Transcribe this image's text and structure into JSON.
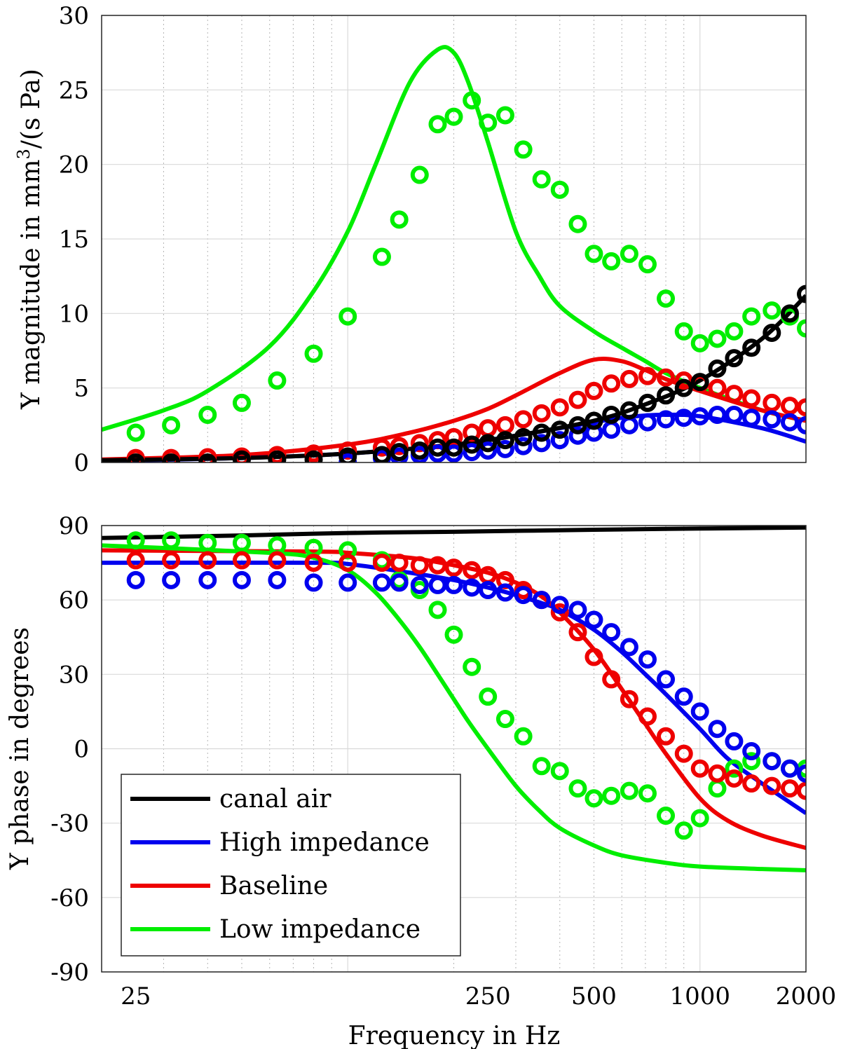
{
  "chart_data": [
    {
      "type": "line",
      "panel": "top",
      "ylabel": "Y magnitude in mm³/(s Pa)",
      "ylabel_parts": {
        "pre": "Y magnitude in mm",
        "sup": "3",
        "post": "/(s Pa)"
      },
      "xscale": "log",
      "xlim": [
        20,
        2000
      ],
      "ylim": [
        0,
        30
      ],
      "yticks": [
        0,
        5,
        10,
        15,
        20,
        25,
        30
      ],
      "ytick_labels": [
        "0",
        "5",
        "10",
        "15",
        "20",
        "25",
        "30"
      ],
      "grid": true,
      "series": [
        {
          "name": "Low impedance",
          "color": "#00ee00",
          "kind": "model",
          "x": [
            20,
            30,
            40,
            60,
            80,
            100,
            120,
            150,
            180,
            200,
            220,
            250,
            300,
            350,
            400,
            500,
            600,
            700,
            800,
            1000,
            1500,
            2000
          ],
          "y": [
            2.2,
            3.5,
            4.8,
            7.8,
            11.5,
            15.5,
            20.0,
            25.5,
            27.7,
            27.5,
            25.5,
            21.5,
            15.5,
            12.5,
            10.5,
            8.8,
            7.7,
            6.8,
            6.0,
            5.0,
            3.5,
            2.8
          ]
        },
        {
          "name": "Baseline",
          "color": "#ee0000",
          "kind": "model",
          "x": [
            20,
            50,
            100,
            150,
            200,
            250,
            300,
            400,
            500,
            600,
            700,
            800,
            1000,
            1500,
            2000
          ],
          "y": [
            0.2,
            0.5,
            1.2,
            2.0,
            2.8,
            3.6,
            4.5,
            6.0,
            6.9,
            6.8,
            6.2,
            5.6,
            4.8,
            3.5,
            2.8
          ]
        },
        {
          "name": "High impedance",
          "color": "#0000ee",
          "kind": "model",
          "x": [
            20,
            50,
            100,
            200,
            300,
            400,
            500,
            600,
            700,
            800,
            1000,
            1500,
            2000
          ],
          "y": [
            0.1,
            0.3,
            0.6,
            1.2,
            1.8,
            2.3,
            2.7,
            3.0,
            3.15,
            3.2,
            3.1,
            2.3,
            1.4
          ]
        },
        {
          "name": "canal air",
          "color": "#000000",
          "kind": "model",
          "x": [
            20,
            50,
            100,
            200,
            300,
            500,
            700,
            1000,
            1500,
            2000
          ],
          "y": [
            0.15,
            0.3,
            0.6,
            1.2,
            1.8,
            2.8,
            3.9,
            5.5,
            8.3,
            11.2
          ]
        },
        {
          "name": "Low impedance (measured)",
          "color": "#00ee00",
          "kind": "measured",
          "x": [
            25,
            31.5,
            40,
            50,
            63,
            80,
            100,
            125,
            140,
            160,
            180,
            200,
            225,
            250,
            280,
            315,
            355,
            400,
            450,
            500,
            560,
            630,
            710,
            800,
            900,
            1000,
            1120,
            1250,
            1400,
            1600,
            1800,
            2000
          ],
          "y": [
            2.0,
            2.5,
            3.2,
            4.0,
            5.5,
            7.3,
            9.8,
            13.8,
            16.3,
            19.3,
            22.7,
            23.2,
            24.3,
            22.8,
            23.3,
            21.0,
            19.0,
            18.3,
            16.0,
            14.0,
            13.5,
            14.0,
            13.3,
            11.0,
            8.8,
            8.0,
            8.3,
            8.8,
            9.8,
            10.2,
            9.8,
            9.0
          ]
        },
        {
          "name": "Baseline (measured)",
          "color": "#ee0000",
          "kind": "measured",
          "x": [
            25,
            31.5,
            40,
            50,
            63,
            80,
            100,
            125,
            140,
            160,
            180,
            200,
            225,
            250,
            280,
            315,
            355,
            400,
            450,
            500,
            560,
            630,
            710,
            800,
            900,
            1000,
            1120,
            1250,
            1400,
            1600,
            1800,
            2000
          ],
          "y": [
            0.3,
            0.3,
            0.35,
            0.4,
            0.5,
            0.6,
            0.8,
            1.0,
            1.1,
            1.3,
            1.5,
            1.7,
            2.0,
            2.3,
            2.5,
            2.9,
            3.3,
            3.7,
            4.2,
            4.8,
            5.3,
            5.6,
            5.8,
            5.7,
            5.5,
            5.3,
            5.0,
            4.6,
            4.3,
            4.0,
            3.8,
            3.7
          ]
        },
        {
          "name": "High impedance (measured)",
          "color": "#0000ee",
          "kind": "measured",
          "x": [
            100,
            125,
            140,
            160,
            180,
            200,
            225,
            250,
            280,
            315,
            355,
            400,
            450,
            500,
            560,
            630,
            710,
            800,
            900,
            1000,
            1120,
            1250,
            1400,
            1600,
            1800,
            2000
          ],
          "y": [
            0.0,
            0.3,
            0.4,
            0.5,
            0.6,
            0.6,
            0.7,
            0.8,
            0.9,
            1.1,
            1.3,
            1.5,
            1.8,
            2.0,
            2.2,
            2.5,
            2.7,
            2.9,
            3.0,
            3.1,
            3.2,
            3.2,
            3.0,
            2.9,
            2.7,
            2.5
          ]
        },
        {
          "name": "canal air (measured)",
          "color": "#000000",
          "kind": "measured",
          "x": [
            25,
            31.5,
            40,
            50,
            63,
            80,
            100,
            125,
            140,
            160,
            180,
            200,
            225,
            250,
            280,
            315,
            355,
            400,
            450,
            500,
            560,
            630,
            710,
            800,
            900,
            1000,
            1120,
            1250,
            1400,
            1600,
            1800,
            2000
          ],
          "y": [
            0.0,
            0.0,
            0.0,
            0.2,
            0.2,
            0.2,
            0.4,
            0.5,
            0.7,
            0.8,
            1.0,
            1.0,
            1.2,
            1.3,
            1.5,
            1.7,
            2.0,
            2.2,
            2.5,
            2.8,
            3.2,
            3.5,
            4.0,
            4.5,
            5.0,
            5.4,
            6.3,
            7.0,
            7.7,
            8.7,
            10.0,
            11.3
          ]
        }
      ]
    },
    {
      "type": "line",
      "panel": "bottom",
      "ylabel": "Y phase in degrees",
      "xlabel": "Frequency in Hz",
      "xscale": "log",
      "xlim": [
        20,
        2000
      ],
      "ylim": [
        -90,
        90
      ],
      "yticks": [
        -90,
        -60,
        -30,
        0,
        30,
        60,
        90
      ],
      "ytick_labels": [
        "-90",
        "-60",
        "-30",
        "0",
        "30",
        "60",
        "90"
      ],
      "xticks": [
        25,
        250,
        500,
        1000,
        2000
      ],
      "xtick_labels": [
        "25",
        "250",
        "500",
        "1000",
        "2000"
      ],
      "grid": true,
      "legend": "lower-left",
      "series": [
        {
          "name": "canal air",
          "color": "#000000",
          "kind": "model",
          "x": [
            20,
            50,
            100,
            200,
            500,
            1000,
            2000
          ],
          "y": [
            85,
            86,
            87,
            87.5,
            88.3,
            88.8,
            89.2
          ]
        },
        {
          "name": "High impedance",
          "color": "#0000ee",
          "kind": "model",
          "x": [
            20,
            80,
            100,
            150,
            200,
            250,
            300,
            350,
            400,
            500,
            600,
            700,
            800,
            1000,
            1200,
            1500,
            2000
          ],
          "y": [
            75,
            75,
            74.5,
            71,
            68,
            65,
            62,
            59,
            56,
            48,
            39,
            30,
            22,
            8,
            -4,
            -14,
            -26
          ]
        },
        {
          "name": "Baseline",
          "color": "#ee0000",
          "kind": "model",
          "x": [
            20,
            80,
            100,
            150,
            200,
            250,
            300,
            350,
            400,
            500,
            600,
            700,
            800,
            1000,
            1200,
            1500,
            2000
          ],
          "y": [
            80,
            79.5,
            79,
            77,
            74,
            71,
            67,
            62,
            55,
            40,
            24,
            10,
            -2,
            -20,
            -29,
            -35,
            -40
          ]
        },
        {
          "name": "Low impedance",
          "color": "#00ee00",
          "kind": "model",
          "x": [
            20,
            60,
            80,
            100,
            120,
            140,
            160,
            180,
            200,
            220,
            250,
            300,
            350,
            400,
            500,
            600,
            800,
            1000,
            1500,
            2000
          ],
          "y": [
            82,
            79,
            77,
            72,
            63,
            52,
            41,
            30,
            20,
            11,
            0,
            -15,
            -25,
            -32,
            -39,
            -43,
            -46,
            -47.5,
            -48.5,
            -49
          ]
        },
        {
          "name": "Low impedance (measured)",
          "color": "#00ee00",
          "kind": "measured",
          "x": [
            25,
            31.5,
            40,
            50,
            63,
            80,
            100,
            125,
            140,
            160,
            180,
            200,
            225,
            250,
            280,
            315,
            355,
            400,
            450,
            500,
            560,
            630,
            710,
            800,
            900,
            1000,
            1120,
            1250,
            1400,
            1600,
            1800,
            2000
          ],
          "y": [
            84,
            84,
            83,
            83,
            82,
            81,
            80,
            76,
            68,
            64,
            56,
            46,
            33,
            21,
            12,
            5,
            -7,
            -9,
            -16,
            -20,
            -19,
            -17,
            -18,
            -27,
            -33,
            -28,
            -16,
            -8,
            -5,
            -5,
            -8,
            -8
          ]
        },
        {
          "name": "Baseline (measured)",
          "color": "#ee0000",
          "kind": "measured",
          "x": [
            25,
            31.5,
            40,
            50,
            63,
            80,
            100,
            125,
            140,
            160,
            180,
            200,
            225,
            250,
            280,
            315,
            355,
            400,
            450,
            500,
            560,
            630,
            710,
            800,
            900,
            1000,
            1120,
            1250,
            1400,
            1600,
            1800,
            2000
          ],
          "y": [
            76,
            76,
            76,
            76,
            76,
            75,
            75,
            75,
            75,
            74,
            74,
            73,
            72,
            70,
            68,
            64,
            60,
            55,
            47,
            37,
            28,
            20,
            13,
            5,
            -2,
            -8,
            -10,
            -12,
            -14,
            -15,
            -16,
            -17
          ]
        },
        {
          "name": "High impedance (measured)",
          "color": "#0000ee",
          "kind": "measured",
          "x": [
            25,
            31.5,
            40,
            50,
            63,
            80,
            100,
            125,
            140,
            160,
            180,
            200,
            225,
            250,
            280,
            315,
            355,
            400,
            450,
            500,
            560,
            630,
            710,
            800,
            900,
            1000,
            1120,
            1250,
            1400,
            1600,
            1800,
            2000
          ],
          "y": [
            68,
            68,
            68,
            68,
            68,
            67,
            67,
            67,
            67,
            66,
            66,
            66,
            65,
            64,
            63,
            62,
            60,
            58,
            56,
            52,
            47,
            41,
            36,
            28,
            21,
            15,
            8,
            3,
            -1,
            -5,
            -8,
            -10
          ]
        },
        {
          "name": "canal air (measured)",
          "color": "#000000",
          "kind": "measured",
          "x": [],
          "y": []
        }
      ]
    }
  ],
  "legend_items": [
    {
      "label": "canal air",
      "color": "#000000"
    },
    {
      "label": "High impedance",
      "color": "#0000ee"
    },
    {
      "label": "Baseline",
      "color": "#ee0000"
    },
    {
      "label": "Low impedance",
      "color": "#00ee00"
    }
  ]
}
